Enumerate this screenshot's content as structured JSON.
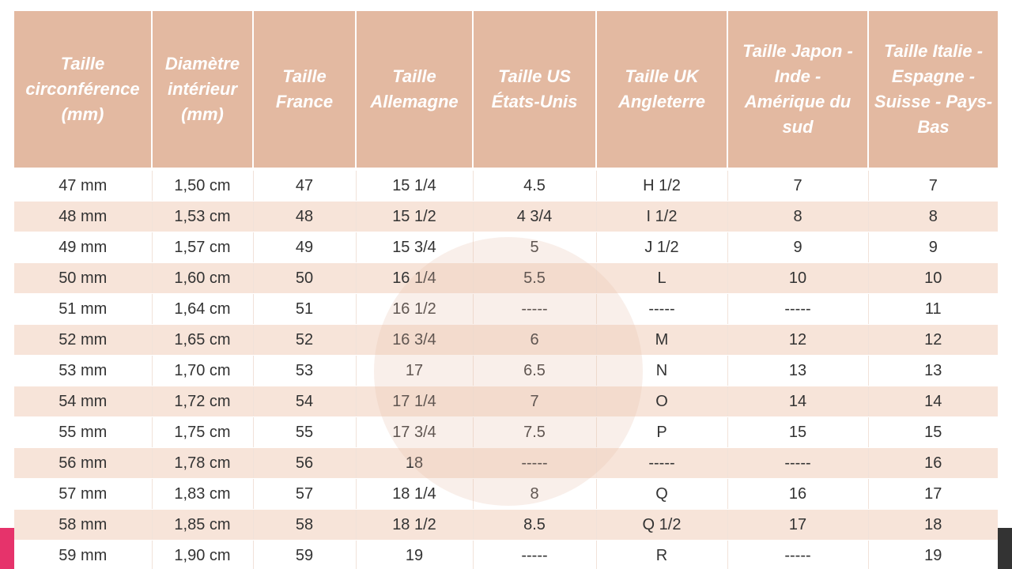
{
  "table": {
    "headers": [
      "Taille circonférence (mm)",
      "Diamètre intérieur (mm)",
      "Taille France",
      "Taille Allemagne",
      "Taille US États-Unis",
      "Taille UK Angleterre",
      "Taille Japon - Inde - Amérique du sud",
      "Taille Italie - Espagne - Suisse - Pays-Bas"
    ],
    "rows": [
      [
        "47 mm",
        "1,50 cm",
        "47",
        "15 1/4",
        "4.5",
        "H 1/2",
        "7",
        "7"
      ],
      [
        "48 mm",
        "1,53 cm",
        "48",
        "15 1/2",
        "4 3/4",
        "I 1/2",
        "8",
        "8"
      ],
      [
        "49 mm",
        "1,57 cm",
        "49",
        "15 3/4",
        "5",
        "J 1/2",
        "9",
        "9"
      ],
      [
        "50 mm",
        "1,60 cm",
        "50",
        "16 1/4",
        "5.5",
        "L",
        "10",
        "10"
      ],
      [
        "51 mm",
        "1,64 cm",
        "51",
        "16 1/2",
        "-----",
        "-----",
        "-----",
        "11"
      ],
      [
        "52 mm",
        "1,65 cm",
        "52",
        "16 3/4",
        "6",
        "M",
        "12",
        "12"
      ],
      [
        "53 mm",
        "1,70 cm",
        "53",
        "17",
        "6.5",
        "N",
        "13",
        "13"
      ],
      [
        "54 mm",
        "1,72 cm",
        "54",
        "17 1/4",
        "7",
        "O",
        "14",
        "14"
      ],
      [
        "55 mm",
        "1,75 cm",
        "55",
        "17 3/4",
        "7.5",
        "P",
        "15",
        "15"
      ],
      [
        "56 mm",
        "1,78 cm",
        "56",
        "18",
        "-----",
        "-----",
        "-----",
        "16"
      ],
      [
        "57 mm",
        "1,83 cm",
        "57",
        "18 1/4",
        "8",
        "Q",
        "16",
        "17"
      ],
      [
        "58 mm",
        "1,85 cm",
        "58",
        "18 1/2",
        "8.5",
        "Q 1/2",
        "17",
        "18"
      ],
      [
        "59 mm",
        "1,90 cm",
        "59",
        "19",
        "-----",
        "R",
        "-----",
        "19"
      ]
    ]
  }
}
